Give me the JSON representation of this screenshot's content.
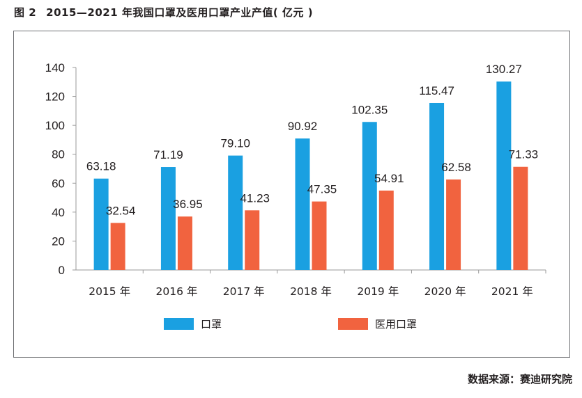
{
  "figure": {
    "number": "图 2",
    "title": "2015—2021 年我国口罩及医用口罩产业产值( 亿元 )"
  },
  "source": "数据来源：赛迪研究院",
  "colors": {
    "series_1": "#1aa0e1",
    "series_2": "#f1633f",
    "axis": "#9a9a9a"
  },
  "chart_data": {
    "type": "bar",
    "categories": [
      "2015 年",
      "2016 年",
      "2017 年",
      "2018 年",
      "2019 年",
      "2020 年",
      "2021 年"
    ],
    "series": [
      {
        "name": "口罩",
        "values": [
          63.18,
          71.19,
          79.1,
          90.92,
          102.35,
          115.47,
          130.27
        ],
        "labels": [
          "63.18",
          "71.19",
          "79.10",
          "90.92",
          "102.35",
          "115.47",
          "130.27"
        ]
      },
      {
        "name": "医用口罩",
        "values": [
          32.54,
          36.95,
          41.23,
          47.35,
          54.91,
          62.58,
          71.33
        ],
        "labels": [
          "32.54",
          "36.95",
          "41.23",
          "47.35",
          "54.91",
          "62.58",
          "71.33"
        ]
      }
    ],
    "yticks": [
      0,
      20,
      40,
      60,
      80,
      100,
      120,
      140
    ],
    "ylim": [
      0,
      140
    ],
    "grid": false,
    "legend": "bottom"
  }
}
